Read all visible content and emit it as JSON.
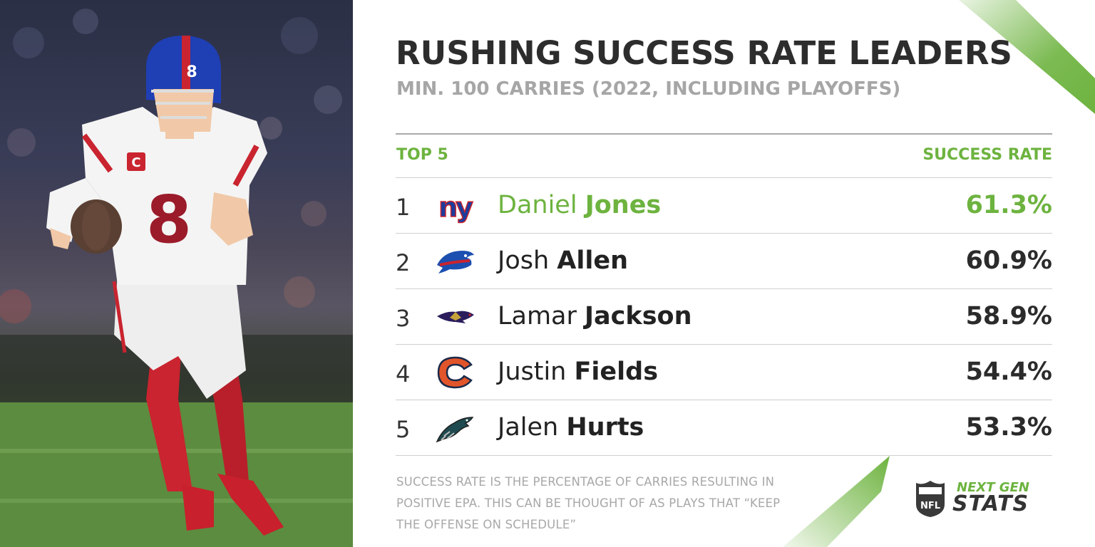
{
  "header": {
    "title": "RUSHING SUCCESS RATE LEADERS",
    "subtitle": "MIN. 100 CARRIES (2022, INCLUDING PLAYOFFS)"
  },
  "table": {
    "left_header": "TOP 5",
    "right_header": "SUCCESS RATE",
    "rows": [
      {
        "rank": "1",
        "team_logo": "giants-logo",
        "first": "Daniel",
        "last": "Jones",
        "rate": "61.3%"
      },
      {
        "rank": "2",
        "team_logo": "bills-logo",
        "first": "Josh",
        "last": "Allen",
        "rate": "60.9%"
      },
      {
        "rank": "3",
        "team_logo": "ravens-logo",
        "first": "Lamar",
        "last": "Jackson",
        "rate": "58.9%"
      },
      {
        "rank": "4",
        "team_logo": "bears-logo",
        "first": "Justin",
        "last": "Fields",
        "rate": "54.4%"
      },
      {
        "rank": "5",
        "team_logo": "eagles-logo",
        "first": "Jalen",
        "last": "Hurts",
        "rate": "53.3%"
      }
    ]
  },
  "footnote": "SUCCESS RATE IS THE PERCENTAGE OF CARRIES RESULTING IN POSITIVE EPA. THIS CAN BE THOUGHT OF AS PLAYS THAT “KEEP THE OFFENSE ON SCHEDULE”",
  "brand": {
    "line1": "NEXT GEN",
    "line2": "STATS",
    "shield_text": "NFL"
  },
  "photo": {
    "jersey_number": "8",
    "captain_patch": "C"
  },
  "colors": {
    "accent": "#6db33f",
    "title": "#2d2d2d",
    "muted": "#a6a6a6"
  }
}
